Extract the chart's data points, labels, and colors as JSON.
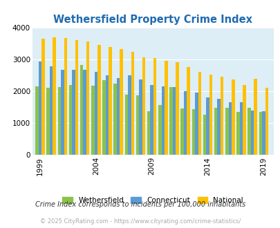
{
  "title": "Wethersfield Property Crime Index",
  "years": [
    1999,
    2000,
    2001,
    2002,
    2003,
    2004,
    2005,
    2006,
    2007,
    2008,
    2009,
    2010,
    2011,
    2012,
    2013,
    2014,
    2015,
    2016,
    2017,
    2018,
    2019
  ],
  "wethersfield": [
    2150,
    2100,
    2130,
    2200,
    2820,
    2170,
    2340,
    2230,
    1900,
    1870,
    1370,
    1560,
    2130,
    1450,
    1430,
    1270,
    1490,
    1480,
    1340,
    1490,
    1350
  ],
  "connecticut": [
    2920,
    2790,
    2680,
    2680,
    2680,
    2600,
    2500,
    2410,
    2500,
    2360,
    2190,
    2160,
    2140,
    2000,
    1960,
    1810,
    1760,
    1660,
    1650,
    1400,
    1380
  ],
  "national": [
    3650,
    3680,
    3660,
    3610,
    3550,
    3450,
    3380,
    3310,
    3230,
    3060,
    3040,
    2950,
    2910,
    2750,
    2600,
    2510,
    2450,
    2370,
    2200,
    2390,
    2110
  ],
  "xtick_positions": [
    1999,
    2004,
    2009,
    2014,
    2019
  ],
  "ylim": [
    0,
    4000
  ],
  "yticks": [
    0,
    1000,
    2000,
    3000,
    4000
  ],
  "color_wethersfield": "#8bc34a",
  "color_connecticut": "#5b9bd5",
  "color_national": "#ffc000",
  "bg_color": "#ddeef6",
  "fig_bg_color": "#ffffff",
  "subtitle": "Crime Index corresponds to incidents per 100,000 inhabitants",
  "footer": "© 2025 CityRating.com - https://www.cityrating.com/crime-statistics/",
  "title_color": "#1f6bb0",
  "subtitle_color": "#333333",
  "footer_color": "#aaaaaa",
  "bar_width": 0.28
}
